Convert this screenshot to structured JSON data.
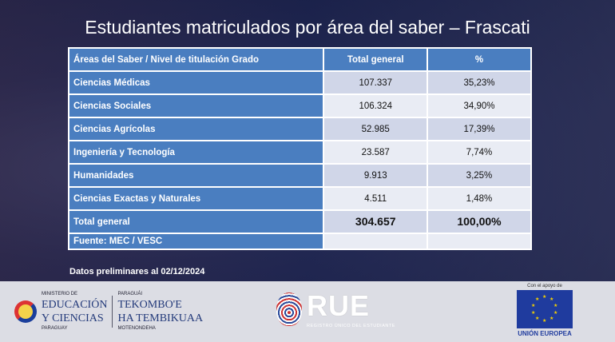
{
  "title": "Estudiantes matriculados por área del saber – Frascati",
  "table": {
    "headers": [
      "Áreas del Saber / Nivel de titulación Grado",
      "Total general",
      "%"
    ],
    "rows": [
      {
        "area": "Ciencias Médicas",
        "total": "107.337",
        "pct": "35,23%"
      },
      {
        "area": "Ciencias Sociales",
        "total": "106.324",
        "pct": "34,90%"
      },
      {
        "area": "Ciencias Agrícolas",
        "total": "52.985",
        "pct": "17,39%"
      },
      {
        "area": "Ingeniería y Tecnología",
        "total": "23.587",
        "pct": "7,74%"
      },
      {
        "area": "Humanidades",
        "total": "9.913",
        "pct": "3,25%"
      },
      {
        "area": "Ciencias Exactas y Naturales",
        "total": "4.511",
        "pct": "1,48%"
      }
    ],
    "total": {
      "area": "Total general",
      "total": "304.657",
      "pct": "100,00%"
    },
    "source": "Fuente: MEC / VESC"
  },
  "note": "Datos preliminares al 02/12/2024",
  "footer": {
    "mec": {
      "l1": "MINISTERIO DE",
      "l2": "EDUCACIÓN",
      "l3": "Y CIENCIAS",
      "l4": "PARAGUAY",
      "r1": "PARAGUÁI",
      "r2": "TEKOMBO'E",
      "r3": "HA TEMBIKUAA",
      "r4": "MOTENONDEHA"
    },
    "rue": {
      "name": "RUE",
      "sub": "REGISTRO ÚNICO DEL ESTUDIANTE"
    },
    "eu": {
      "top": "Con el apoyo de",
      "label": "UNIÓN EUROPEA"
    }
  },
  "colors": {
    "header": "#4a7ec0",
    "row_a": "#d0d6e8",
    "row_b": "#e9ecf4"
  }
}
